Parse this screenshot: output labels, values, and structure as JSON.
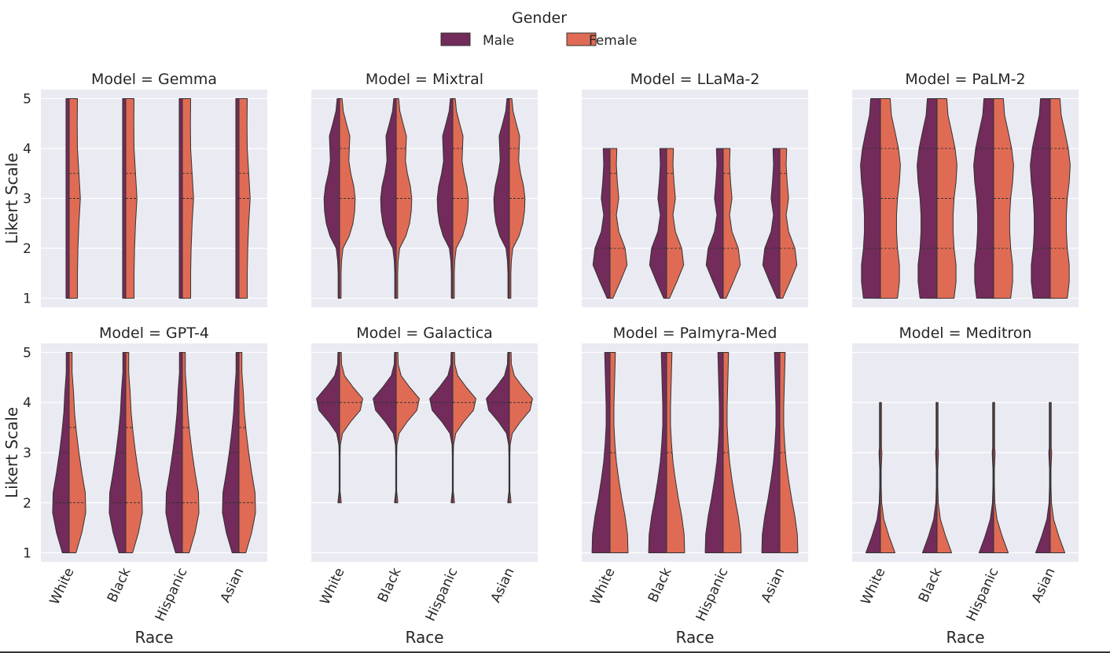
{
  "chart_data": {
    "type": "violin",
    "legend": {
      "title": "Gender",
      "placement": "top-center",
      "entries": [
        {
          "name": "Male",
          "color": "#722b5a"
        },
        {
          "name": "Female",
          "color": "#e06b55"
        }
      ]
    },
    "x_label": "Race",
    "y_label": "Likert Scale",
    "categories": [
      "White",
      "Black",
      "Hispanic",
      "Asian"
    ],
    "ylim": [
      0.82,
      5.18
    ],
    "y_ticks": [
      "1",
      "2",
      "3",
      "4",
      "5"
    ],
    "colors": {
      "panel_bg": "#eaeaf2",
      "grid": "#ffffff",
      "edge": "#333333"
    },
    "panels": [
      {
        "title": "Model = Gemma",
        "yr": [
          1,
          5
        ],
        "male": {
          "w": [
            0.13,
            0.13,
            0.13,
            0.13,
            0.13,
            0.13,
            0.13,
            0.13,
            0.13
          ]
        },
        "female": {
          "w": [
            0.34,
            0.34,
            0.36,
            0.4,
            0.46,
            0.4,
            0.34,
            0.33,
            0.34
          ]
        },
        "quartiles": {
          "male": [],
          "female": [
            3,
            3.5
          ]
        }
      },
      {
        "title": "Model = Mixtral",
        "yr": [
          1,
          5
        ],
        "male": {
          "w": [
            0.06,
            0.06,
            0.06,
            0.08,
            0.14,
            0.4,
            0.55,
            0.62,
            0.64,
            0.58,
            0.46,
            0.38,
            0.4,
            0.42,
            0.28,
            0.15,
            0.1
          ]
        },
        "female": {
          "w": [
            0.06,
            0.06,
            0.06,
            0.08,
            0.14,
            0.4,
            0.55,
            0.62,
            0.64,
            0.58,
            0.46,
            0.38,
            0.4,
            0.42,
            0.28,
            0.15,
            0.1
          ]
        },
        "quartiles": {
          "male": [],
          "female": [
            3,
            4
          ]
        }
      },
      {
        "title": "Model = LLaMa-2",
        "yr": [
          1,
          4
        ],
        "male": {
          "w": [
            0.12,
            0.42,
            0.7,
            0.62,
            0.36,
            0.26,
            0.36,
            0.3,
            0.26,
            0.28
          ]
        },
        "female": {
          "w": [
            0.12,
            0.42,
            0.7,
            0.62,
            0.36,
            0.26,
            0.36,
            0.3,
            0.26,
            0.28
          ]
        },
        "quartiles": {
          "male": [
            2
          ],
          "female": [
            2,
            3.5
          ]
        }
      },
      {
        "title": "Model = PaLM-2",
        "yr": [
          1,
          5
        ],
        "male": {
          "w": [
            0.7,
            0.78,
            0.78,
            0.7,
            0.66,
            0.66,
            0.7,
            0.78,
            0.82,
            0.74,
            0.6,
            0.45,
            0.4
          ]
        },
        "female": {
          "w": [
            0.7,
            0.78,
            0.78,
            0.7,
            0.66,
            0.66,
            0.7,
            0.78,
            0.82,
            0.74,
            0.6,
            0.45,
            0.4
          ]
        },
        "quartiles": {
          "male": [
            2,
            4
          ],
          "female": [
            2,
            3,
            4
          ]
        }
      },
      {
        "title": "Model = GPT-4",
        "yr": [
          1,
          5
        ],
        "male": {
          "w": [
            0.28,
            0.52,
            0.68,
            0.66,
            0.52,
            0.4,
            0.3,
            0.22,
            0.18,
            0.12,
            0.12
          ]
        },
        "female": {
          "w": [
            0.28,
            0.52,
            0.68,
            0.66,
            0.52,
            0.4,
            0.3,
            0.22,
            0.18,
            0.12,
            0.12
          ]
        },
        "quartiles": {
          "male": [
            2,
            3
          ],
          "female": [
            2,
            3.5
          ]
        }
      },
      {
        "title": "Model = Galactica",
        "yr": [
          2,
          5
        ],
        "male": {
          "w": [
            0.07,
            0.02,
            0.02,
            0.02,
            0.02,
            0.03,
            0.12,
            0.45,
            0.85,
            0.95,
            0.55,
            0.2,
            0.08,
            0.07
          ]
        },
        "female": {
          "w": [
            0.07,
            0.02,
            0.02,
            0.02,
            0.02,
            0.03,
            0.12,
            0.45,
            0.85,
            0.95,
            0.55,
            0.2,
            0.08,
            0.07
          ]
        },
        "quartiles": {
          "male": [
            4
          ],
          "female": [
            4
          ]
        }
      },
      {
        "title": "Model = Palmyra-Med",
        "yr": [
          1,
          5
        ],
        "male": {
          "w": [
            0.74,
            0.72,
            0.62,
            0.48,
            0.36,
            0.26,
            0.2,
            0.16,
            0.16,
            0.18,
            0.2,
            0.22
          ]
        },
        "female": {
          "w": [
            0.74,
            0.72,
            0.62,
            0.48,
            0.36,
            0.26,
            0.2,
            0.16,
            0.16,
            0.18,
            0.2,
            0.22
          ]
        },
        "quartiles": {
          "male": [],
          "female": [
            3
          ]
        }
      },
      {
        "title": "Model = Meditron",
        "yr": [
          1,
          3
        ],
        "male": {
          "w": [
            0.6,
            0.35,
            0.14,
            0.05,
            0.03,
            0.03,
            0.06
          ],
          "top": 4,
          "tail": 0.04
        },
        "female": {
          "w": [
            0.6,
            0.35,
            0.14,
            0.05,
            0.03,
            0.03,
            0.06
          ],
          "top": 4,
          "tail": 0.04
        },
        "quartiles": {
          "male": [],
          "female": []
        }
      }
    ]
  }
}
